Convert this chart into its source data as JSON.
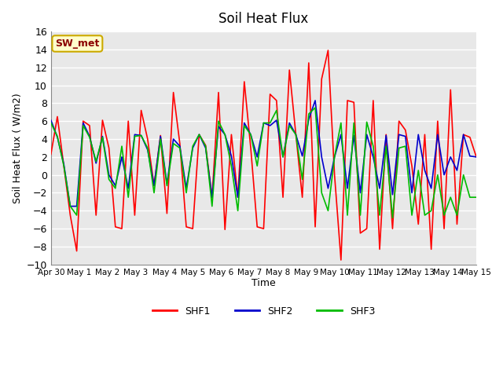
{
  "title": "Soil Heat Flux",
  "ylabel": "Soil Heat Flux ( W/m2)",
  "xlabel": "Time",
  "ylim": [
    -10,
    16
  ],
  "yticks": [
    -10,
    -8,
    -6,
    -4,
    -2,
    0,
    2,
    4,
    6,
    8,
    10,
    12,
    14,
    16
  ],
  "annotation_text": "SW_met",
  "annotation_bg": "#ffffcc",
  "annotation_border": "#ccaa00",
  "annotation_text_color": "#8b0000",
  "fig_bg": "#ffffff",
  "plot_bg": "#e8e8e8",
  "grid_color": "#ffffff",
  "colors": {
    "SHF1": "#ff0000",
    "SHF2": "#0000cc",
    "SHF3": "#00bb00"
  },
  "line_width": 1.2,
  "xtick_labels": [
    "Apr 30",
    "May 1",
    "May 2",
    "May 3",
    "May 4",
    "May 5",
    "May 6",
    "May 7",
    "May 8",
    "May 9",
    "May 10",
    "May 11",
    "May 12",
    "May 13",
    "May 14",
    "May 15"
  ],
  "shf1_values": [
    2.3,
    6.5,
    1.0,
    -4.5,
    -8.5,
    6.0,
    5.5,
    -4.5,
    6.1,
    3.0,
    -5.8,
    -6.0,
    6.0,
    -4.5,
    7.2,
    4.0,
    -1.2,
    4.4,
    -4.3,
    9.2,
    3.5,
    -5.8,
    -6.0,
    4.5,
    3.3,
    -2.5,
    9.2,
    -6.1,
    4.5,
    -2.5,
    10.4,
    3.0,
    -5.8,
    -6.0,
    9.0,
    8.3,
    -2.5,
    11.7,
    4.5,
    -2.5,
    12.5,
    -5.8,
    10.7,
    13.9,
    0.0,
    -9.5,
    8.3,
    8.1,
    -6.5,
    -6.0,
    8.3,
    -8.3,
    4.5,
    -6.0,
    6.0,
    5.0,
    1.0,
    -5.5,
    4.5,
    -8.3,
    6.0,
    -6.0,
    9.5,
    -5.5,
    4.5,
    4.2,
    2.0
  ],
  "shf2_values": [
    6.1,
    4.2,
    1.2,
    -3.5,
    -3.5,
    5.8,
    4.3,
    1.3,
    4.3,
    0.0,
    -1.2,
    2.0,
    -1.5,
    4.5,
    4.4,
    2.8,
    -1.2,
    4.3,
    -1.0,
    4.0,
    3.2,
    -1.5,
    3.0,
    4.5,
    3.0,
    -2.5,
    5.4,
    4.5,
    2.1,
    -2.5,
    5.8,
    4.5,
    2.0,
    5.8,
    5.5,
    6.1,
    2.0,
    5.8,
    4.5,
    2.1,
    6.2,
    8.3,
    2.0,
    -1.5,
    2.0,
    4.5,
    -1.5,
    4.4,
    -2.0,
    4.5,
    2.0,
    -1.5,
    4.4,
    -2.2,
    4.5,
    4.3,
    -2.0,
    4.5,
    0.5,
    -1.5,
    4.5,
    0.0,
    2.0,
    0.5,
    4.5,
    2.1,
    2.0
  ],
  "shf3_values": [
    5.8,
    4.3,
    1.0,
    -3.5,
    -4.5,
    5.5,
    4.2,
    1.5,
    4.2,
    -0.5,
    -1.5,
    3.2,
    -2.5,
    4.3,
    4.4,
    3.0,
    -2.0,
    4.0,
    -1.2,
    3.5,
    3.0,
    -2.0,
    3.2,
    4.5,
    3.2,
    -3.5,
    6.0,
    4.5,
    1.0,
    -4.0,
    5.5,
    4.5,
    1.0,
    5.8,
    5.8,
    7.2,
    2.0,
    5.5,
    4.5,
    -0.5,
    6.8,
    7.5,
    -2.0,
    -4.0,
    2.0,
    5.8,
    -4.5,
    5.8,
    -4.5,
    5.9,
    3.2,
    -4.5,
    3.2,
    -4.8,
    3.0,
    3.2,
    -4.5,
    0.5,
    -4.5,
    -4.0,
    0.0,
    -4.5,
    -2.5,
    -4.5,
    0.0,
    -2.5,
    -2.5
  ]
}
